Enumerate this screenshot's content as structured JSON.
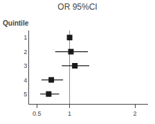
{
  "chart_data": {
    "type": "forest",
    "title": "OR 95%CI",
    "ylabel": "Quintile",
    "y": [
      1,
      2,
      3,
      4,
      5
    ],
    "values": [
      1.0,
      1.02,
      1.08,
      0.72,
      0.68
    ],
    "ci_low": [
      1.0,
      0.78,
      0.88,
      0.57,
      0.55
    ],
    "ci_high": [
      1.0,
      1.28,
      1.3,
      0.9,
      0.84
    ],
    "ref_line": 1.0,
    "xlim": [
      0.38,
      2.2
    ],
    "xticks": [
      0.5,
      1,
      2
    ],
    "ylim": [
      5.7,
      0.5
    ],
    "yticks": [
      1,
      2,
      3,
      4,
      5
    ],
    "color": "#1a1a1a",
    "grid": false
  }
}
